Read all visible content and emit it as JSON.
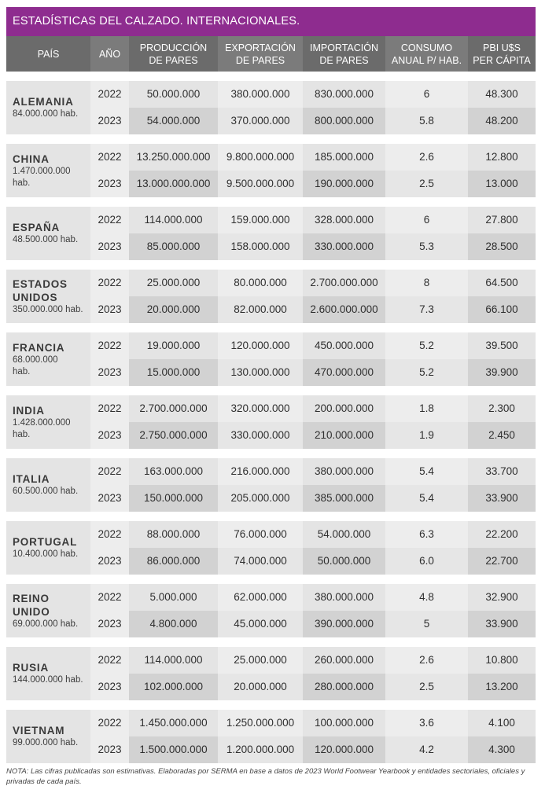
{
  "title": "ESTADÍSTICAS DEL CALZADO. INTERNACIONALES.",
  "headers": {
    "pais": "PAÍS",
    "ano": "AÑO",
    "produccion_1": "PRODUCCIÓN",
    "produccion_2": "DE PARES",
    "exportacion_1": "EXPORTACIÓN",
    "exportacion_2": "DE PARES",
    "importacion_1": "IMPORTACIÓN",
    "importacion_2": "DE PARES",
    "consumo_1": "CONSUMO",
    "consumo_2": "ANUAL P/ HAB.",
    "pbi_1": "PBI U$S",
    "pbi_2": "PER CÁPITA"
  },
  "countries": [
    {
      "name": "ALEMANIA",
      "population": "84.000.000 hab.",
      "rows": [
        {
          "year": "2022",
          "production": "50.000.000",
          "export": "380.000.000",
          "import": "830.000.000",
          "consumption": "6",
          "gdp": "48.300"
        },
        {
          "year": "2023",
          "production": "54.000.000",
          "export": "370.000.000",
          "import": "800.000.000",
          "consumption": "5.8",
          "gdp": "48.200"
        }
      ]
    },
    {
      "name": "CHINA",
      "population": "1.470.000.000 hab.",
      "rows": [
        {
          "year": "2022",
          "production": "13.250.000.000",
          "export": "9.800.000.000",
          "import": "185.000.000",
          "consumption": "2.6",
          "gdp": "12.800"
        },
        {
          "year": "2023",
          "production": "13.000.000.000",
          "export": "9.500.000.000",
          "import": "190.000.000",
          "consumption": "2.5",
          "gdp": "13.000"
        }
      ]
    },
    {
      "name": "ESPAÑA",
      "population": "48.500.000 hab.",
      "rows": [
        {
          "year": "2022",
          "production": "114.000.000",
          "export": "159.000.000",
          "import": "328.000.000",
          "consumption": "6",
          "gdp": "27.800"
        },
        {
          "year": "2023",
          "production": "85.000.000",
          "export": "158.000.000",
          "import": "330.000.000",
          "consumption": "5.3",
          "gdp": "28.500"
        }
      ]
    },
    {
      "name": "ESTADOS\nUNIDOS",
      "population": "350.000.000 hab.",
      "rows": [
        {
          "year": "2022",
          "production": "25.000.000",
          "export": "80.000.000",
          "import": "2.700.000.000",
          "consumption": "8",
          "gdp": "64.500"
        },
        {
          "year": "2023",
          "production": "20.000.000",
          "export": "82.000.000",
          "import": "2.600.000.000",
          "consumption": "7.3",
          "gdp": "66.100"
        }
      ]
    },
    {
      "name": "FRANCIA",
      "population": "68.000.000\nhab.",
      "rows": [
        {
          "year": "2022",
          "production": "19.000.000",
          "export": "120.000.000",
          "import": "450.000.000",
          "consumption": "5.2",
          "gdp": "39.500"
        },
        {
          "year": "2023",
          "production": "15.000.000",
          "export": "130.000.000",
          "import": "470.000.000",
          "consumption": "5.2",
          "gdp": "39.900"
        }
      ]
    },
    {
      "name": "INDIA",
      "population": "1.428.000.000 hab.",
      "rows": [
        {
          "year": "2022",
          "production": "2.700.000.000",
          "export": "320.000.000",
          "import": "200.000.000",
          "consumption": "1.8",
          "gdp": "2.300"
        },
        {
          "year": "2023",
          "production": "2.750.000.000",
          "export": "330.000.000",
          "import": "210.000.000",
          "consumption": "1.9",
          "gdp": "2.450"
        }
      ]
    },
    {
      "name": "ITALIA",
      "population": "60.500.000 hab.",
      "rows": [
        {
          "year": "2022",
          "production": "163.000.000",
          "export": "216.000.000",
          "import": "380.000.000",
          "consumption": "5.4",
          "gdp": "33.700"
        },
        {
          "year": "2023",
          "production": "150.000.000",
          "export": "205.000.000",
          "import": "385.000.000",
          "consumption": "5.4",
          "gdp": "33.900"
        }
      ]
    },
    {
      "name": "PORTUGAL",
      "population": "10.400.000 hab.",
      "rows": [
        {
          "year": "2022",
          "production": "88.000.000",
          "export": "76.000.000",
          "import": "54.000.000",
          "consumption": "6.3",
          "gdp": "22.200"
        },
        {
          "year": "2023",
          "production": "86.000.000",
          "export": "74.000.000",
          "import": "50.000.000",
          "consumption": "6.0",
          "gdp": "22.700"
        }
      ]
    },
    {
      "name": "REINO\nUNIDO",
      "population": "69.000.000 hab.",
      "rows": [
        {
          "year": "2022",
          "production": "5.000.000",
          "export": "62.000.000",
          "import": "380.000.000",
          "consumption": "4.8",
          "gdp": "32.900"
        },
        {
          "year": "2023",
          "production": "4.800.000",
          "export": "45.000.000",
          "import": "390.000.000",
          "consumption": "5",
          "gdp": "33.900"
        }
      ]
    },
    {
      "name": "RUSIA",
      "population": "144.000.000 hab.",
      "rows": [
        {
          "year": "2022",
          "production": "114.000.000",
          "export": "25.000.000",
          "import": "260.000.000",
          "consumption": "2.6",
          "gdp": "10.800"
        },
        {
          "year": "2023",
          "production": "102.000.000",
          "export": "20.000.000",
          "import": "280.000.000",
          "consumption": "2.5",
          "gdp": "13.200"
        }
      ]
    },
    {
      "name": "VIETNAM",
      "population": "99.000.000 hab.",
      "rows": [
        {
          "year": "2022",
          "production": "1.450.000.000",
          "export": "1.250.000.000",
          "import": "100.000.000",
          "consumption": "3.6",
          "gdp": "4.100"
        },
        {
          "year": "2023",
          "production": "1.500.000.000",
          "export": "1.200.000.000",
          "import": "120.000.000",
          "consumption": "4.2",
          "gdp": "4.300"
        }
      ]
    }
  ],
  "note": "NOTA: Las cifras publicadas son estimativas. Elaboradas por SERMA en base a datos de 2023 World Footwear Yearbook y entidades sectoriales, oficiales y privadas de cada país.",
  "colors": {
    "title_bar": "#8e2c8f",
    "header": "#7b7b7b"
  }
}
